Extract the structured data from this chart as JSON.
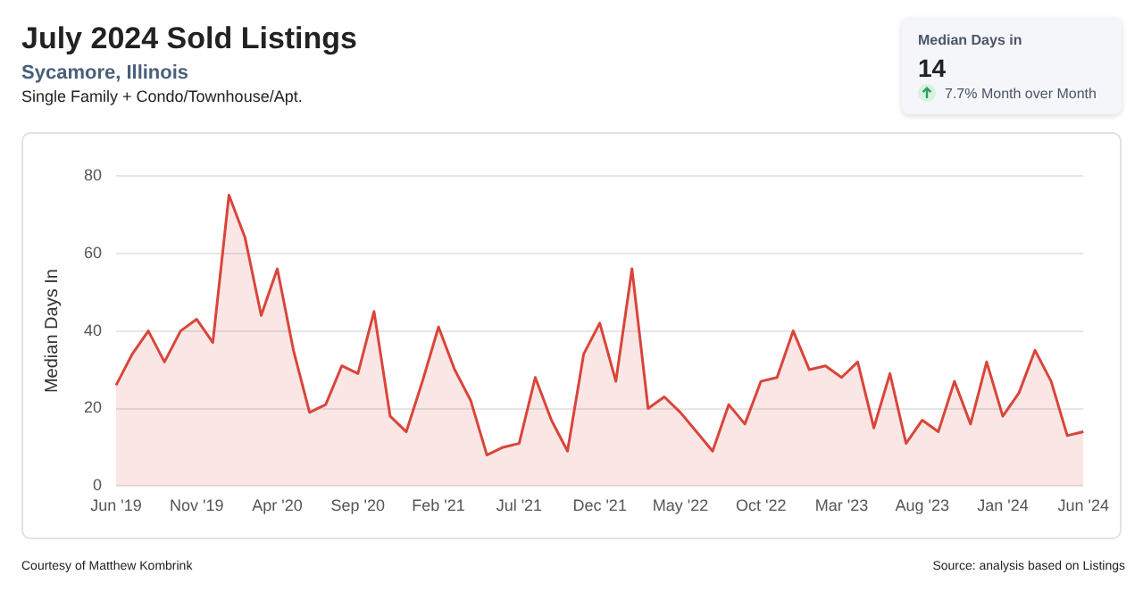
{
  "chart_data": [
    {
      "type": "area",
      "title": "July 2024 Sold Listings",
      "subtitle": "Sycamore, Illinois",
      "ylabel": "Median Days In",
      "annotations": [
        "Single Family + Condo/Townhouse/Apt.",
        "Courtesy of Matthew Kombrink",
        "Source: analysis based on Listings"
      ],
      "categories": [
        "Jun '19",
        null,
        null,
        null,
        null,
        "Nov '19",
        null,
        null,
        null,
        null,
        "Apr '20",
        null,
        null,
        null,
        null,
        "Sep '20",
        null,
        null,
        null,
        null,
        "Feb '21",
        null,
        null,
        null,
        null,
        "Jul '21",
        null,
        null,
        null,
        null,
        "Dec '21",
        null,
        null,
        null,
        null,
        "May '22",
        null,
        null,
        null,
        null,
        "Oct '22",
        null,
        null,
        null,
        null,
        "Mar '23",
        null,
        null,
        null,
        null,
        "Aug '23",
        null,
        null,
        null,
        null,
        "Jan '24",
        null,
        null,
        null,
        null,
        "Jun '24"
      ],
      "series": [
        {
          "color": "#d9453a",
          "values": [
            26,
            34,
            40,
            32,
            40,
            43,
            37,
            75,
            64,
            44,
            56,
            35,
            19,
            21,
            31,
            29,
            45,
            18,
            14,
            27,
            41,
            30,
            22,
            8,
            10,
            11,
            28,
            17,
            9,
            34,
            42,
            27,
            56,
            20,
            23,
            19,
            14,
            9,
            21,
            16,
            27,
            28,
            40,
            30,
            31,
            28,
            32,
            15,
            29,
            11,
            17,
            14,
            27,
            16,
            32,
            18,
            24,
            35,
            27,
            13,
            14
          ]
        }
      ],
      "ylim": [
        0,
        80
      ],
      "yticks": [
        0,
        20,
        40,
        60,
        80
      ],
      "grid": "y",
      "legend": false,
      "marker": "none",
      "line_style": "solid"
    },
    {
      "type": "other",
      "title": "Median Days in",
      "annotations": [
        "14",
        "7.7% Month over Month"
      ]
    }
  ]
}
